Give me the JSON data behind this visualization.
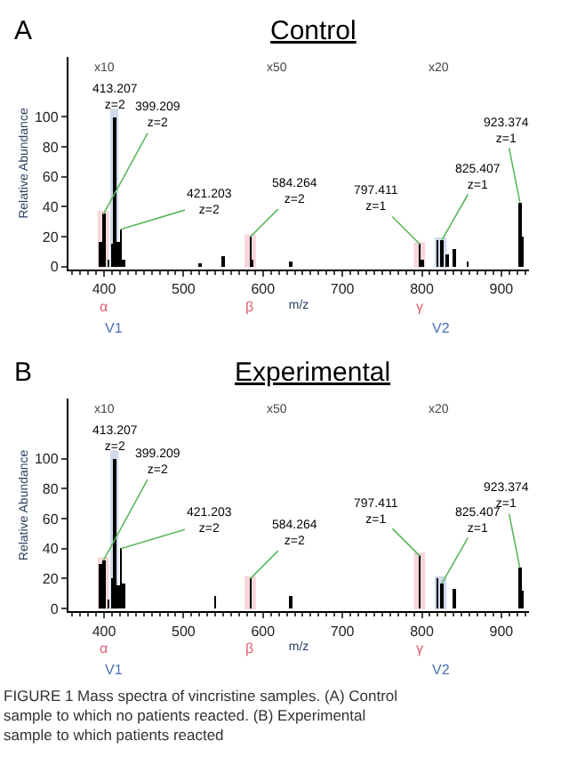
{
  "chart_data": [
    {
      "type": "bar",
      "title": "Control",
      "xlabel": "m/z",
      "ylabel": "Relative Abundance",
      "color": "#000000",
      "x": [
        395,
        399.209,
        405,
        410,
        413.207,
        418,
        421.203,
        425,
        520,
        550,
        584.264,
        587,
        635,
        797.411,
        800,
        819,
        825.407,
        832,
        840,
        857,
        923.374,
        927
      ],
      "values": [
        17,
        35,
        5,
        15,
        100,
        16,
        25,
        5,
        2,
        7,
        20,
        5,
        4,
        15,
        5,
        18,
        18,
        8,
        12,
        3,
        43,
        20
      ],
      "xlim": [
        355,
        935
      ],
      "ylim": [
        -2,
        140
      ],
      "xticks": [
        400,
        500,
        600,
        700,
        800,
        900
      ],
      "yticks": [
        0,
        20,
        40,
        60,
        80,
        100
      ],
      "grid": false,
      "bands": [
        {
          "axis": "x",
          "from": 393,
          "to": 405,
          "label": "α",
          "color": "#e06070"
        },
        {
          "axis": "x",
          "from": 409,
          "to": 417,
          "label": "V1",
          "color": "#4a6fb5"
        },
        {
          "axis": "x",
          "from": 578,
          "to": 590,
          "label": "β",
          "color": "#e06070"
        },
        {
          "axis": "x",
          "from": 791,
          "to": 803,
          "label": "γ",
          "color": "#e06070"
        },
        {
          "axis": "x",
          "from": 817,
          "to": 830,
          "label": "V2",
          "color": "#4a6fb5"
        }
      ],
      "annotations": [
        "A",
        "x10",
        "x50",
        "x20",
        {
          "text": "413.207\nz=2",
          "x": 413.207,
          "y": 100
        },
        {
          "text": "399.209\nz=2",
          "x": 399.209,
          "y": 35
        },
        {
          "text": "421.203\nz=2",
          "x": 421.203,
          "y": 25
        },
        {
          "text": "584.264\nz=2",
          "x": 584.264,
          "y": 20
        },
        {
          "text": "797.411\nz=1",
          "x": 797.411,
          "y": 15
        },
        {
          "text": "825.407\nz=1",
          "x": 825.407,
          "y": 18
        },
        {
          "text": "923.374\nz=1",
          "x": 923.374,
          "y": 43
        }
      ]
    },
    {
      "type": "bar",
      "title": "Experimental",
      "xlabel": "m/z",
      "ylabel": "Relative Abundance",
      "color": "#000000",
      "x": [
        395,
        399.209,
        405,
        410,
        413.207,
        418,
        421.203,
        424,
        540,
        584.264,
        635,
        797.411,
        819,
        825.407,
        840,
        923.374,
        927
      ],
      "values": [
        30,
        32,
        6,
        20,
        100,
        15,
        40,
        17,
        8,
        20,
        8,
        35,
        20,
        17,
        13,
        27,
        12
      ],
      "xlim": [
        355,
        935
      ],
      "ylim": [
        -2,
        140
      ],
      "xticks": [
        400,
        500,
        600,
        700,
        800,
        900
      ],
      "yticks": [
        0,
        20,
        40,
        60,
        80,
        100
      ],
      "grid": false,
      "bands": [
        {
          "axis": "x",
          "from": 393,
          "to": 405,
          "label": "α",
          "color": "#e06070"
        },
        {
          "axis": "x",
          "from": 409,
          "to": 417,
          "label": "V1",
          "color": "#4a6fb5"
        },
        {
          "axis": "x",
          "from": 578,
          "to": 590,
          "label": "β",
          "color": "#e06070"
        },
        {
          "axis": "x",
          "from": 791,
          "to": 803,
          "label": "γ",
          "color": "#e06070"
        },
        {
          "axis": "x",
          "from": 817,
          "to": 830,
          "label": "V2",
          "color": "#4a6fb5"
        }
      ],
      "annotations": [
        "B",
        "x10",
        "x50",
        "x20",
        {
          "text": "413.207\nz=2",
          "x": 413.207,
          "y": 100
        },
        {
          "text": "399.209\nz=2",
          "x": 399.209,
          "y": 32
        },
        {
          "text": "421.203\nz=2",
          "x": 421.203,
          "y": 40
        },
        {
          "text": "584.264\nz=2",
          "x": 584.264,
          "y": 20
        },
        {
          "text": "797.411\nz=1",
          "x": 797.411,
          "y": 35
        },
        {
          "text": "825.407\nz=1",
          "x": 825.407,
          "y": 17
        },
        {
          "text": "923.374\nz=1",
          "x": 923.374,
          "y": 27
        },
        "FIGURE 1 Mass spectra of vincristine samples. (A) Control sample to which no patients reacted. (B) Experimental sample to which patients reacted"
      ]
    }
  ]
}
